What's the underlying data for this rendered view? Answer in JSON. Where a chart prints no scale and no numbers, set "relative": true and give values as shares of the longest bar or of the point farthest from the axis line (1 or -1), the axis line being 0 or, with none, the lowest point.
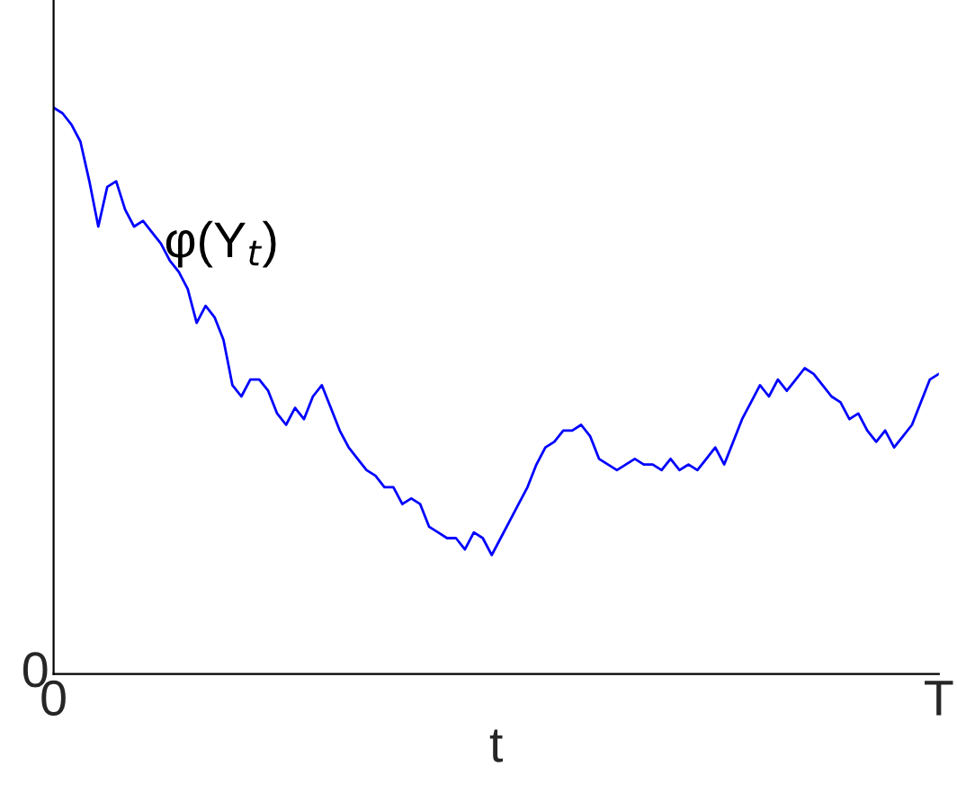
{
  "chart_data": {
    "type": "line",
    "relative": true,
    "xlabel": "t",
    "categories": [
      "0",
      null,
      null,
      null,
      null,
      null,
      null,
      null,
      null,
      null,
      null,
      null,
      null,
      null,
      null,
      null,
      null,
      null,
      null,
      null,
      null,
      null,
      null,
      null,
      null,
      null,
      null,
      null,
      null,
      null,
      null,
      null,
      null,
      null,
      null,
      null,
      null,
      null,
      null,
      null,
      null,
      null,
      null,
      null,
      null,
      null,
      null,
      null,
      null,
      null,
      null,
      null,
      null,
      null,
      null,
      null,
      null,
      null,
      null,
      null,
      null,
      null,
      null,
      null,
      null,
      null,
      null,
      null,
      null,
      null,
      null,
      null,
      null,
      null,
      null,
      null,
      null,
      null,
      null,
      null,
      null,
      null,
      null,
      null,
      null,
      null,
      null,
      null,
      null,
      null,
      null,
      null,
      null,
      null,
      null,
      null,
      null,
      null,
      null,
      "T"
    ],
    "series": [
      {
        "name": "φ(Y$_{t}$)",
        "color": "#0000ff",
        "values": [
          1.0,
          0.99,
          0.97,
          0.94,
          0.87,
          0.79,
          0.86,
          0.87,
          0.82,
          0.79,
          0.8,
          0.78,
          0.76,
          0.73,
          0.71,
          0.68,
          0.62,
          0.65,
          0.63,
          0.59,
          0.51,
          0.49,
          0.52,
          0.52,
          0.5,
          0.46,
          0.44,
          0.47,
          0.45,
          0.49,
          0.51,
          0.47,
          0.43,
          0.4,
          0.38,
          0.36,
          0.35,
          0.33,
          0.33,
          0.3,
          0.31,
          0.3,
          0.26,
          0.25,
          0.24,
          0.24,
          0.22,
          0.25,
          0.24,
          0.21,
          0.24,
          0.27,
          0.3,
          0.33,
          0.37,
          0.4,
          0.41,
          0.43,
          0.43,
          0.44,
          0.42,
          0.38,
          0.37,
          0.36,
          0.37,
          0.38,
          0.37,
          0.37,
          0.36,
          0.38,
          0.36,
          0.37,
          0.36,
          0.38,
          0.4,
          0.37,
          0.41,
          0.45,
          0.48,
          0.51,
          0.49,
          0.52,
          0.5,
          0.52,
          0.54,
          0.53,
          0.51,
          0.49,
          0.48,
          0.45,
          0.46,
          0.43,
          0.41,
          0.43,
          0.4,
          0.42,
          0.44,
          0.48,
          0.52,
          0.53
        ]
      }
    ],
    "annotations": [
      "0"
    ]
  }
}
